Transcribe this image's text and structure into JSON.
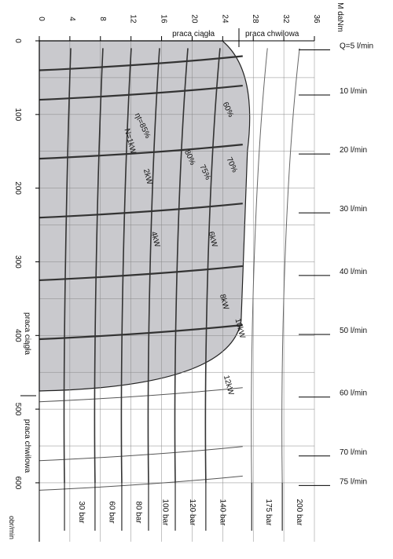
{
  "chart_data": {
    "type": "line",
    "title": "",
    "xlabel": "M daNm",
    "ylabel": "obr/min",
    "x_axis": {
      "position": "top",
      "range": [
        0,
        36
      ],
      "ticks": [
        0,
        4,
        8,
        12,
        16,
        20,
        24,
        28,
        32,
        36
      ]
    },
    "y_axis": {
      "position": "left",
      "range": [
        0,
        680
      ],
      "ticks": [
        0,
        100,
        200,
        300,
        400,
        500,
        600
      ],
      "unit_label": "obr/min"
    },
    "regions": {
      "continuous_label": "praca ciągła",
      "intermittent_label": "praca chwilowa",
      "vertical_continuous_label": "praca ciągła",
      "vertical_intermittent_label": "praca chwilowa",
      "continuous_area_color": "#c9c9cd",
      "continuous_boundary": {
        "max_torque": 26,
        "max_speed": 470
      }
    },
    "flow_series": [
      {
        "label": "Q=5 l/min",
        "speed": 40
      },
      {
        "label": "10 l/min",
        "speed": 80
      },
      {
        "label": "20 l/min",
        "speed": 160
      },
      {
        "label": "30 l/min",
        "speed": 240
      },
      {
        "label": "40 l/min",
        "speed": 325
      },
      {
        "label": "50 l/min",
        "speed": 405
      },
      {
        "label": "60 l/min",
        "speed": 490
      },
      {
        "label": "70 l/min",
        "speed": 570
      },
      {
        "label": "75 l/min",
        "speed": 610
      }
    ],
    "pressure_series": [
      {
        "label": "30 bar",
        "torque": 3.5
      },
      {
        "label": "60 bar",
        "torque": 7.5
      },
      {
        "label": "80 bar",
        "torque": 11
      },
      {
        "label": "100 bar",
        "torque": 14.5
      },
      {
        "label": "120 bar",
        "torque": 18
      },
      {
        "label": "140 bar",
        "torque": 22
      },
      {
        "label": "175 bar",
        "torque": 28
      },
      {
        "label": "200 bar",
        "torque": 32
      }
    ],
    "power_labels": [
      "N=1kW",
      "2kW",
      "4kW",
      "6kW",
      "8kW",
      "10kW",
      "12kW"
    ],
    "efficiency_labels": [
      "ηt=85%",
      "80%",
      "75%",
      "70%",
      "60%"
    ]
  }
}
